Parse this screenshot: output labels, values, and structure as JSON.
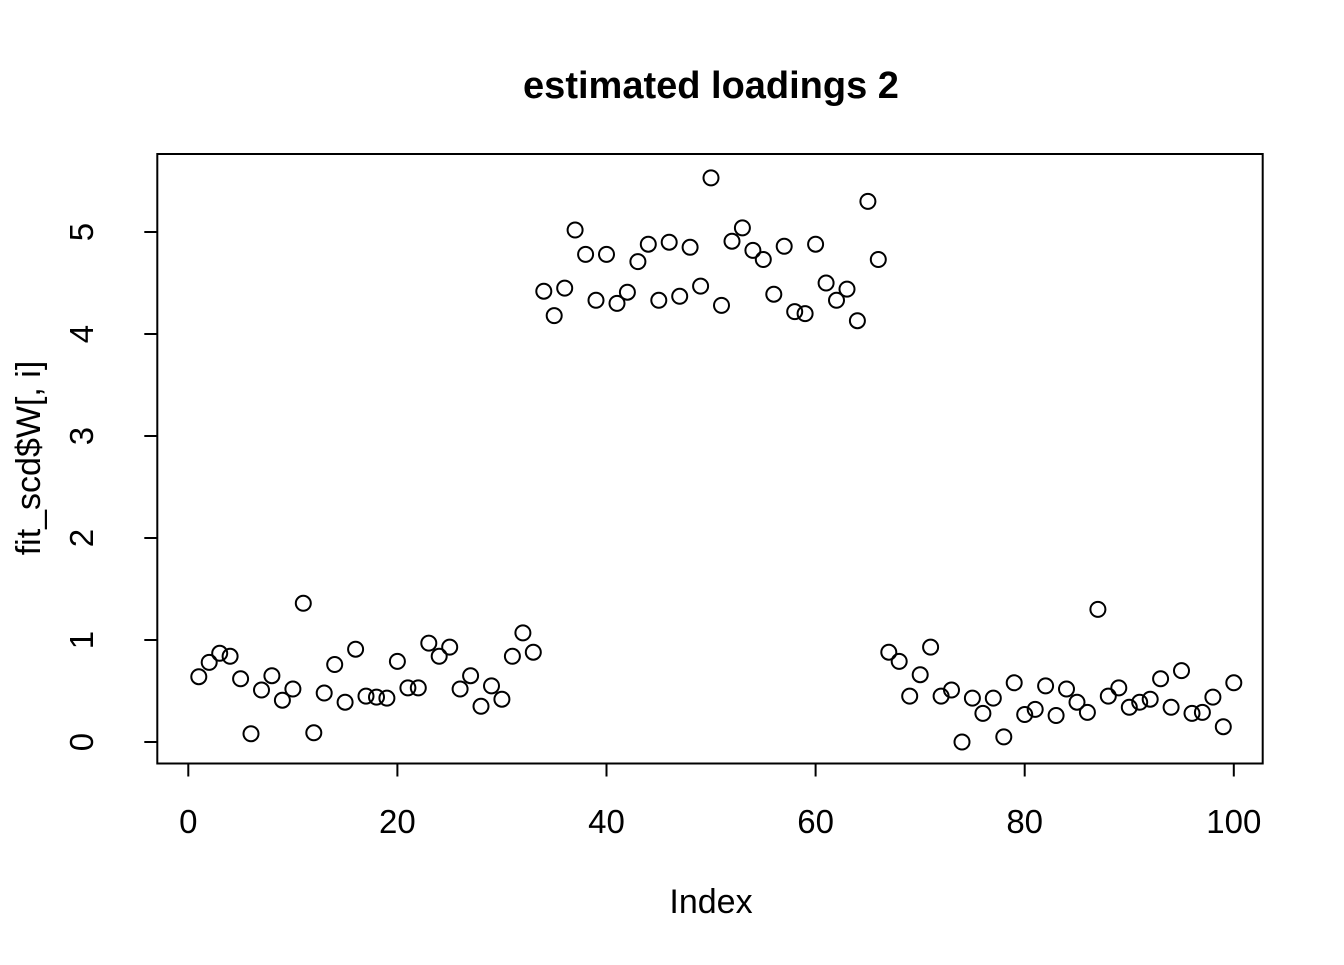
{
  "chart_data": {
    "type": "scatter",
    "title": "estimated loadings 2",
    "xlabel": "Index",
    "ylabel": "fit_scd$W[, i]",
    "marker": "open-circle",
    "grid": false,
    "x_is_index": true,
    "n_points": 100,
    "x_ticks": [
      0,
      20,
      40,
      60,
      80,
      100
    ],
    "y_ticks": [
      0,
      1,
      2,
      3,
      4,
      5
    ],
    "xlim": [
      -3,
      104
    ],
    "ylim": [
      -0.22,
      5.75
    ],
    "colors": {
      "foreground": "#000000",
      "background": "#ffffff"
    },
    "values": [
      0.64,
      0.78,
      0.87,
      0.84,
      0.62,
      0.08,
      0.51,
      0.65,
      0.41,
      0.52,
      1.36,
      0.09,
      0.48,
      0.76,
      0.39,
      0.91,
      0.45,
      0.44,
      0.43,
      0.79,
      0.53,
      0.53,
      0.97,
      0.84,
      0.93,
      0.52,
      0.65,
      0.35,
      0.55,
      0.42,
      0.84,
      1.07,
      0.88,
      4.42,
      4.18,
      4.45,
      5.02,
      4.78,
      4.33,
      4.78,
      4.3,
      4.41,
      4.71,
      4.88,
      4.33,
      4.9,
      4.37,
      4.85,
      4.47,
      5.53,
      4.28,
      4.91,
      5.04,
      4.82,
      4.73,
      4.39,
      4.86,
      4.22,
      4.2,
      4.88,
      4.5,
      4.33,
      4.44,
      4.13,
      5.3,
      4.73,
      0.88,
      0.79,
      0.45,
      0.66,
      0.93,
      0.45,
      0.51,
      0.0,
      0.43,
      0.28,
      0.43,
      0.05,
      0.58,
      0.27,
      0.32,
      0.55,
      0.26,
      0.52,
      0.39,
      0.29,
      1.3,
      0.45,
      0.53,
      0.34,
      0.39,
      0.42,
      0.62,
      0.34,
      0.7,
      0.28,
      0.29,
      0.44,
      0.15,
      0.58
    ]
  }
}
